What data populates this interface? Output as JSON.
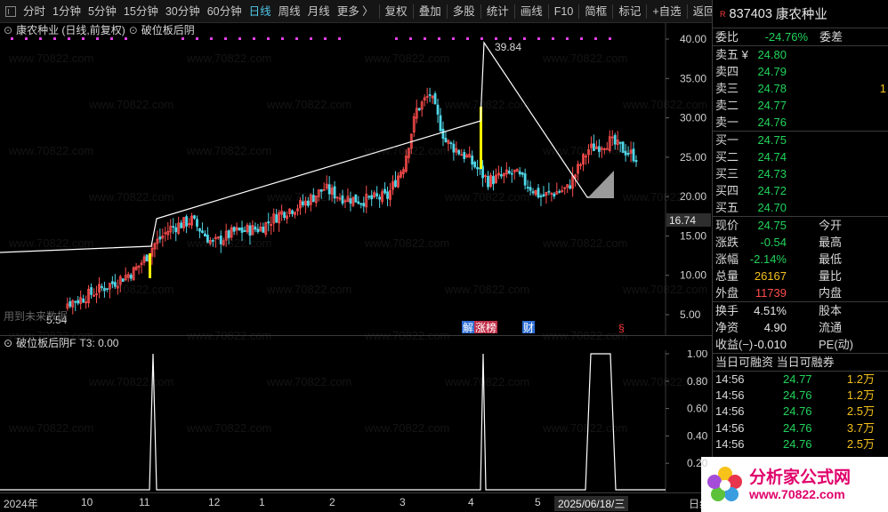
{
  "toolbar": {
    "left": [
      "分时",
      "1分钟",
      "5分钟",
      "15分钟",
      "30分钟",
      "60分钟",
      "日线",
      "周线",
      "月线",
      "更多 〉"
    ],
    "active_index": 6,
    "right": [
      "复权",
      "叠加",
      "多股",
      "统计",
      "画线",
      "F10",
      "简框",
      "标记",
      "+自选",
      "返回"
    ]
  },
  "chart": {
    "title": "康农种业 (日线,前复权)",
    "indicator": "破位板后阴",
    "high_label": "39.84",
    "low_label": "5.54",
    "price_label": "16.74",
    "y_ticks": [
      "40.00",
      "35.00",
      "30.00",
      "25.00",
      "20.00",
      "15.00",
      "10.00",
      "5.00"
    ],
    "markers": [
      "解",
      "涨榜",
      "财",
      "§"
    ],
    "left_note": "用到未来数据"
  },
  "sub": {
    "title": "破位板后阴F",
    "value_label": "T3: 0.00",
    "y_ticks": [
      "1.00",
      "0.80",
      "0.60",
      "0.40",
      "0.20"
    ]
  },
  "xaxis": {
    "labels": [
      "2024年",
      "10",
      "11",
      "12",
      "1",
      "2",
      "3",
      "4",
      "5"
    ],
    "cursor_date": "2025/06/18/三",
    "period": "日线"
  },
  "panel": {
    "code": "837403",
    "name": "康农种业",
    "weibi": {
      "label": "委比",
      "value": "-24.76%",
      "label2": "委差"
    },
    "asks": [
      {
        "label": "卖五 ¥",
        "price": "24.80"
      },
      {
        "label": "卖四",
        "price": "24.79"
      },
      {
        "label": "卖三",
        "price": "24.78",
        "extra": "1"
      },
      {
        "label": "卖二",
        "price": "24.77"
      },
      {
        "label": "卖一",
        "price": "24.76"
      }
    ],
    "bids": [
      {
        "label": "买一",
        "price": "24.75"
      },
      {
        "label": "买二",
        "price": "24.74"
      },
      {
        "label": "买三",
        "price": "24.73"
      },
      {
        "label": "买四",
        "price": "24.72"
      },
      {
        "label": "买五",
        "price": "24.70"
      }
    ],
    "stats1": [
      {
        "label": "现价",
        "value": "24.75",
        "label2": "今开"
      },
      {
        "label": "涨跌",
        "value": "-0.54",
        "label2": "最高"
      },
      {
        "label": "涨幅",
        "value": "-2.14%",
        "label2": "最低"
      },
      {
        "label": "总量",
        "value": "26167",
        "label2": "量比"
      },
      {
        "label": "外盘",
        "value": "11739",
        "label2": "内盘"
      }
    ],
    "stats2": [
      {
        "label": "换手",
        "value": "4.51%",
        "label2": "股本"
      },
      {
        "label": "净资",
        "value": "4.90",
        "label2": "流通"
      },
      {
        "label": "收益(−)",
        "value": "-0.010",
        "label2": "PE(动)"
      }
    ],
    "margin_header": "当日可融资 当日可融券",
    "ticks": [
      {
        "time": "14:56",
        "price": "24.77",
        "vol": "1.2万"
      },
      {
        "time": "14:56",
        "price": "24.76",
        "vol": "1.2万"
      },
      {
        "time": "14:56",
        "price": "24.76",
        "vol": "2.5万"
      },
      {
        "time": "14:56",
        "price": "24.76",
        "vol": "3.7万"
      },
      {
        "time": "14:56",
        "price": "24.76",
        "vol": "2.5万"
      }
    ]
  },
  "brand": {
    "line1": "分析家公式网",
    "line2": "www.70822.com"
  },
  "watermark": "www.70822.com"
}
